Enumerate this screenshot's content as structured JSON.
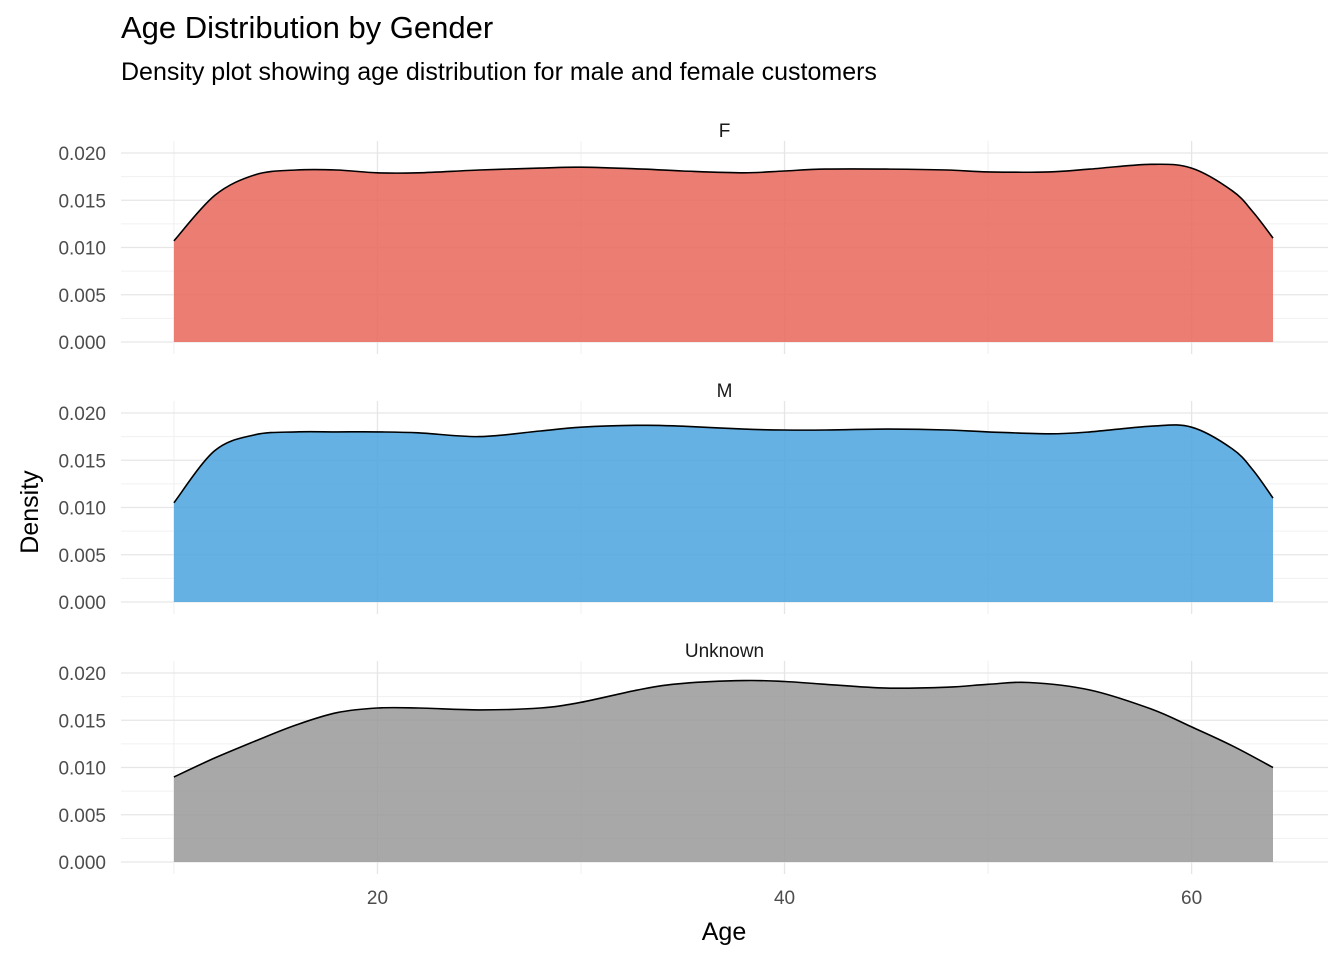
{
  "chart_data": {
    "type": "area",
    "title": "Age Distribution by Gender",
    "subtitle": "Density plot showing age distribution for male and female customers",
    "xlabel": "Age",
    "ylabel": "Density",
    "xlim": [
      7.4,
      66.7
    ],
    "ylim": [
      0,
      0.02
    ],
    "x_ticks": [
      20,
      40,
      60
    ],
    "y_ticks": [
      "0.000",
      "0.005",
      "0.010",
      "0.015",
      "0.020"
    ],
    "grid": true,
    "legend": "none",
    "panels": [
      {
        "name": "F",
        "color": "#E8665A",
        "x": [
          10,
          12,
          14,
          16,
          18,
          20,
          22,
          25,
          28,
          30,
          33,
          35,
          38,
          40,
          42,
          45,
          48,
          50,
          53,
          55,
          58,
          60,
          62,
          63,
          64
        ],
        "y": [
          0.0107,
          0.0155,
          0.0177,
          0.0182,
          0.0182,
          0.0179,
          0.0179,
          0.0182,
          0.0184,
          0.0185,
          0.0183,
          0.0181,
          0.0179,
          0.0181,
          0.0183,
          0.0183,
          0.0182,
          0.018,
          0.018,
          0.0183,
          0.0188,
          0.0184,
          0.016,
          0.0138,
          0.011
        ]
      },
      {
        "name": "M",
        "color": "#4AA3DF",
        "x": [
          10,
          12,
          14,
          16,
          18,
          20,
          22,
          25,
          28,
          30,
          33,
          35,
          38,
          40,
          42,
          45,
          48,
          50,
          53,
          55,
          58,
          60,
          62,
          63,
          64
        ],
        "y": [
          0.0105,
          0.016,
          0.0177,
          0.018,
          0.018,
          0.018,
          0.0179,
          0.0175,
          0.0181,
          0.0185,
          0.0187,
          0.0186,
          0.0183,
          0.0182,
          0.0182,
          0.0183,
          0.0182,
          0.018,
          0.0178,
          0.018,
          0.0186,
          0.0185,
          0.0162,
          0.014,
          0.011
        ]
      },
      {
        "name": "Unknown",
        "color": "#999999",
        "x": [
          10,
          12,
          14,
          16,
          18,
          20,
          22,
          25,
          28,
          30,
          33,
          35,
          38,
          40,
          42,
          45,
          48,
          50,
          52,
          55,
          58,
          60,
          62,
          64
        ],
        "y": [
          0.009,
          0.011,
          0.0128,
          0.0145,
          0.0158,
          0.0163,
          0.0163,
          0.0161,
          0.0163,
          0.0169,
          0.0183,
          0.0189,
          0.0192,
          0.0191,
          0.0188,
          0.0184,
          0.0185,
          0.0188,
          0.019,
          0.0182,
          0.0162,
          0.0143,
          0.0123,
          0.01
        ]
      }
    ]
  }
}
